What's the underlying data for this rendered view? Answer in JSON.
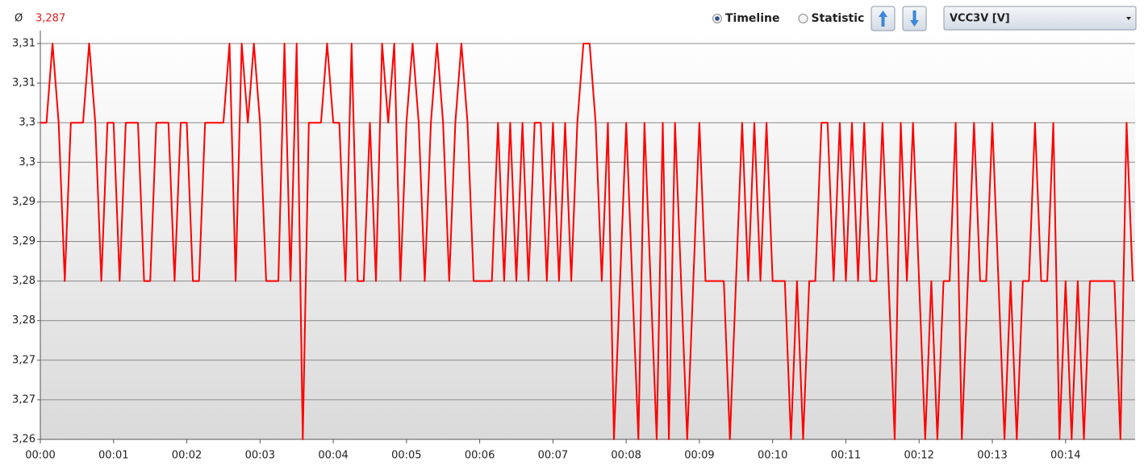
{
  "header": {
    "average_symbol": "Ø",
    "average_value": "3,287",
    "modes": [
      {
        "label": "Timeline",
        "selected": true
      },
      {
        "label": "Statistic",
        "selected": false
      }
    ],
    "channel": "VCC3V [V]"
  },
  "chart_data": {
    "type": "line",
    "color": "#ff0000",
    "grid": true,
    "x": [
      0,
      5,
      10,
      15,
      20,
      25,
      30,
      35,
      40,
      45,
      50,
      55,
      60,
      65,
      70,
      75,
      80,
      85,
      90,
      95,
      100,
      105,
      110,
      115,
      120,
      125,
      130,
      135,
      140,
      145,
      150,
      155,
      160,
      165,
      170,
      175,
      180,
      185,
      190,
      195,
      200,
      205,
      210,
      215,
      220,
      225,
      230,
      235,
      240,
      245,
      250,
      255,
      260,
      265,
      270,
      275,
      280,
      285,
      290,
      295,
      300,
      305,
      310,
      315,
      320,
      325,
      330,
      335,
      340,
      345,
      350,
      355,
      360,
      365,
      370,
      375,
      380,
      385,
      390,
      395,
      400,
      405,
      410,
      415,
      420,
      425,
      430,
      435,
      440,
      445,
      450,
      455,
      460,
      465,
      470,
      475,
      480,
      485,
      490,
      495,
      500,
      505,
      510,
      515,
      520,
      525,
      530,
      535,
      540,
      545,
      550,
      555,
      560,
      565,
      570,
      575,
      580,
      585,
      590,
      595,
      600,
      605,
      610,
      615,
      620,
      625,
      630,
      635,
      640,
      645,
      650,
      655,
      660,
      665,
      670,
      675,
      680,
      685,
      690,
      695,
      700,
      705,
      710,
      715,
      720,
      725,
      730,
      735,
      740,
      745,
      750,
      755,
      760,
      765,
      770,
      775,
      780,
      785,
      790,
      795,
      800,
      805,
      810,
      815,
      820,
      825,
      830,
      835,
      840,
      845,
      850,
      855,
      860,
      865,
      870,
      875,
      880,
      885,
      890,
      895
    ],
    "values": [
      3.3,
      3.3,
      3.31,
      3.3,
      3.28,
      3.3,
      3.3,
      3.3,
      3.31,
      3.3,
      3.28,
      3.3,
      3.3,
      3.28,
      3.3,
      3.3,
      3.3,
      3.28,
      3.28,
      3.3,
      3.3,
      3.3,
      3.28,
      3.3,
      3.3,
      3.28,
      3.28,
      3.3,
      3.3,
      3.3,
      3.3,
      3.31,
      3.28,
      3.31,
      3.3,
      3.31,
      3.3,
      3.28,
      3.28,
      3.28,
      3.31,
      3.28,
      3.31,
      3.26,
      3.3,
      3.3,
      3.3,
      3.31,
      3.3,
      3.3,
      3.28,
      3.31,
      3.28,
      3.28,
      3.3,
      3.28,
      3.31,
      3.3,
      3.31,
      3.28,
      3.3,
      3.31,
      3.3,
      3.28,
      3.3,
      3.31,
      3.3,
      3.28,
      3.3,
      3.31,
      3.3,
      3.28,
      3.28,
      3.28,
      3.28,
      3.3,
      3.28,
      3.3,
      3.28,
      3.3,
      3.28,
      3.3,
      3.3,
      3.28,
      3.3,
      3.28,
      3.3,
      3.28,
      3.3,
      3.31,
      3.31,
      3.3,
      3.28,
      3.3,
      3.26,
      3.28,
      3.3,
      3.28,
      3.26,
      3.3,
      3.28,
      3.26,
      3.3,
      3.26,
      3.3,
      3.28,
      3.26,
      3.28,
      3.3,
      3.28,
      3.28,
      3.28,
      3.28,
      3.26,
      3.28,
      3.3,
      3.28,
      3.3,
      3.28,
      3.3,
      3.28,
      3.28,
      3.28,
      3.26,
      3.28,
      3.26,
      3.28,
      3.28,
      3.3,
      3.3,
      3.28,
      3.3,
      3.28,
      3.3,
      3.28,
      3.3,
      3.28,
      3.28,
      3.3,
      3.28,
      3.26,
      3.3,
      3.28,
      3.3,
      3.28,
      3.26,
      3.28,
      3.26,
      3.28,
      3.28,
      3.3,
      3.26,
      3.28,
      3.3,
      3.28,
      3.28,
      3.3,
      3.28,
      3.26,
      3.28,
      3.26,
      3.28,
      3.28,
      3.3,
      3.28,
      3.28,
      3.3,
      3.26,
      3.28,
      3.26,
      3.28,
      3.26,
      3.28,
      3.28,
      3.28,
      3.28,
      3.28,
      3.26,
      3.3,
      3.28
    ],
    "xlim": [
      0,
      897
    ],
    "xticks": [
      {
        "value": 0,
        "label": "00:00"
      },
      {
        "value": 60,
        "label": "00:01"
      },
      {
        "value": 120,
        "label": "00:02"
      },
      {
        "value": 180,
        "label": "00:03"
      },
      {
        "value": 240,
        "label": "00:04"
      },
      {
        "value": 300,
        "label": "00:05"
      },
      {
        "value": 360,
        "label": "00:06"
      },
      {
        "value": 420,
        "label": "00:07"
      },
      {
        "value": 480,
        "label": "00:08"
      },
      {
        "value": 540,
        "label": "00:09"
      },
      {
        "value": 600,
        "label": "00:10"
      },
      {
        "value": 660,
        "label": "00:11"
      },
      {
        "value": 720,
        "label": "00:12"
      },
      {
        "value": 780,
        "label": "00:13"
      },
      {
        "value": 840,
        "label": "00:14"
      }
    ],
    "ylim": [
      3.26,
      3.31
    ],
    "yticks": [
      {
        "value": 3.26,
        "label": "3,26"
      },
      {
        "value": 3.265,
        "label": "3,27"
      },
      {
        "value": 3.27,
        "label": "3,27"
      },
      {
        "value": 3.275,
        "label": "3,28"
      },
      {
        "value": 3.28,
        "label": "3,28"
      },
      {
        "value": 3.285,
        "label": "3,29"
      },
      {
        "value": 3.29,
        "label": "3,29"
      },
      {
        "value": 3.295,
        "label": "3,3"
      },
      {
        "value": 3.3,
        "label": "3,3"
      },
      {
        "value": 3.305,
        "label": "3,31"
      },
      {
        "value": 3.31,
        "label": "3,31"
      }
    ]
  }
}
